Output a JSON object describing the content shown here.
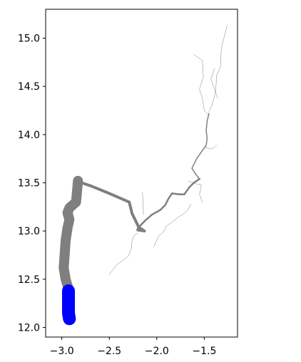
{
  "chart_data": {
    "type": "line",
    "title": "",
    "xlabel": "",
    "ylabel": "",
    "xlim": [
      -3.17,
      -1.15
    ],
    "ylim": [
      11.9,
      15.3
    ],
    "grid": false,
    "x_ticks": [
      {
        "value": -3.0,
        "label": "−3.0"
      },
      {
        "value": -2.5,
        "label": "−2.5"
      },
      {
        "value": -2.0,
        "label": "−2.0"
      },
      {
        "value": -1.5,
        "label": "−1.5"
      }
    ],
    "y_ticks": [
      {
        "value": 12.0,
        "label": "12.0"
      },
      {
        "value": 12.5,
        "label": "12.5"
      },
      {
        "value": 13.0,
        "label": "13.0"
      },
      {
        "value": 13.5,
        "label": "13.5"
      },
      {
        "value": 14.0,
        "label": "14.0"
      },
      {
        "value": 14.5,
        "label": "14.5"
      },
      {
        "value": 15.0,
        "label": "15.0"
      }
    ],
    "series": [
      {
        "color": "#7f7f7f",
        "width": 0.5,
        "points": [
          [
            -1.26,
            15.13
          ],
          [
            -1.28,
            15.05
          ],
          [
            -1.32,
            14.9
          ],
          [
            -1.33,
            14.7
          ],
          [
            -1.37,
            14.62
          ],
          [
            -1.38,
            14.45
          ],
          [
            -1.42,
            14.3
          ],
          [
            -1.45,
            14.24
          ]
        ]
      },
      {
        "color": "#7f7f7f",
        "width": 0.5,
        "points": [
          [
            -1.61,
            14.83
          ],
          [
            -1.52,
            14.77
          ],
          [
            -1.51,
            14.6
          ],
          [
            -1.55,
            14.47
          ],
          [
            -1.52,
            14.38
          ],
          [
            -1.5,
            14.25
          ],
          [
            -1.45,
            14.2
          ]
        ]
      },
      {
        "color": "#7f7f7f",
        "width": 0.5,
        "points": [
          [
            -1.39,
            14.69
          ],
          [
            -1.43,
            14.58
          ],
          [
            -1.36,
            14.38
          ]
        ]
      },
      {
        "color": "#7f7f7f",
        "width": 0.5,
        "points": [
          [
            -1.5,
            13.87
          ],
          [
            -1.42,
            13.85
          ],
          [
            -1.37,
            13.89
          ]
        ]
      },
      {
        "color": "#7f7f7f",
        "width": 0.5,
        "points": [
          [
            -1.67,
            13.52
          ],
          [
            -1.59,
            13.49
          ],
          [
            -1.53,
            13.48
          ],
          [
            -1.55,
            13.38
          ],
          [
            -1.52,
            13.3
          ]
        ]
      },
      {
        "color": "#7f7f7f",
        "width": 0.5,
        "points": [
          [
            -1.64,
            13.28
          ],
          [
            -1.68,
            13.21
          ],
          [
            -1.73,
            13.17
          ],
          [
            -1.78,
            13.14
          ],
          [
            -1.84,
            13.09
          ],
          [
            -1.9,
            13.05
          ],
          [
            -1.93,
            12.99
          ],
          [
            -1.98,
            12.95
          ],
          [
            -2.03,
            12.84
          ]
        ]
      },
      {
        "color": "#7f7f7f",
        "width": 0.5,
        "points": [
          [
            -2.2,
            12.98
          ],
          [
            -2.24,
            12.95
          ],
          [
            -2.26,
            12.9
          ],
          [
            -2.27,
            12.81
          ],
          [
            -2.3,
            12.74
          ],
          [
            -2.35,
            12.7
          ],
          [
            -2.41,
            12.66
          ],
          [
            -2.46,
            12.6
          ],
          [
            -2.5,
            12.55
          ]
        ]
      },
      {
        "color": "#7f7f7f",
        "width": 0.5,
        "points": [
          [
            -2.14,
            13.17
          ],
          [
            -2.15,
            13.4
          ]
        ]
      },
      {
        "color": "#7f7f7f",
        "width": 1.5,
        "points": [
          [
            -1.45,
            14.22
          ],
          [
            -1.47,
            14.14
          ],
          [
            -1.48,
            14.04
          ],
          [
            -1.47,
            13.96
          ],
          [
            -1.48,
            13.89
          ],
          [
            -1.53,
            13.82
          ],
          [
            -1.58,
            13.75
          ],
          [
            -1.63,
            13.65
          ],
          [
            -1.59,
            13.59
          ],
          [
            -1.55,
            13.54
          ]
        ]
      },
      {
        "color": "#7f7f7f",
        "width": 2.5,
        "points": [
          [
            -1.55,
            13.54
          ],
          [
            -1.61,
            13.5
          ],
          [
            -1.66,
            13.45
          ],
          [
            -1.71,
            13.38
          ],
          [
            -1.76,
            13.38
          ],
          [
            -1.84,
            13.39
          ],
          [
            -1.88,
            13.33
          ],
          [
            -1.91,
            13.27
          ],
          [
            -1.96,
            13.22
          ],
          [
            -2.05,
            13.17
          ],
          [
            -2.11,
            13.12
          ],
          [
            -2.19,
            13.04
          ]
        ]
      },
      {
        "color": "#7f7f7f",
        "width": 4,
        "points": [
          [
            -2.19,
            13.04
          ],
          [
            -2.2,
            13.01
          ],
          [
            -2.13,
            13.0
          ],
          [
            -2.19,
            13.04
          ],
          [
            -2.26,
            13.18
          ],
          [
            -2.29,
            13.3
          ],
          [
            -2.5,
            13.39
          ],
          [
            -2.7,
            13.47
          ],
          [
            -2.82,
            13.51
          ]
        ]
      },
      {
        "color": "#7f7f7f",
        "width": 14,
        "points": [
          [
            -2.83,
            13.52
          ],
          [
            -2.85,
            13.3
          ],
          [
            -2.92,
            13.24
          ],
          [
            -2.94,
            13.19
          ],
          [
            -2.92,
            13.12
          ],
          [
            -2.94,
            13.03
          ],
          [
            -2.96,
            12.9
          ],
          [
            -2.97,
            12.75
          ],
          [
            -2.98,
            12.62
          ],
          [
            -2.96,
            12.5
          ],
          [
            -2.93,
            12.4
          ]
        ]
      },
      {
        "color": "#0000ff",
        "width": 18,
        "points": [
          [
            -2.93,
            12.38
          ],
          [
            -2.93,
            12.27
          ],
          [
            -2.93,
            12.15
          ],
          [
            -2.92,
            12.09
          ]
        ]
      }
    ]
  }
}
